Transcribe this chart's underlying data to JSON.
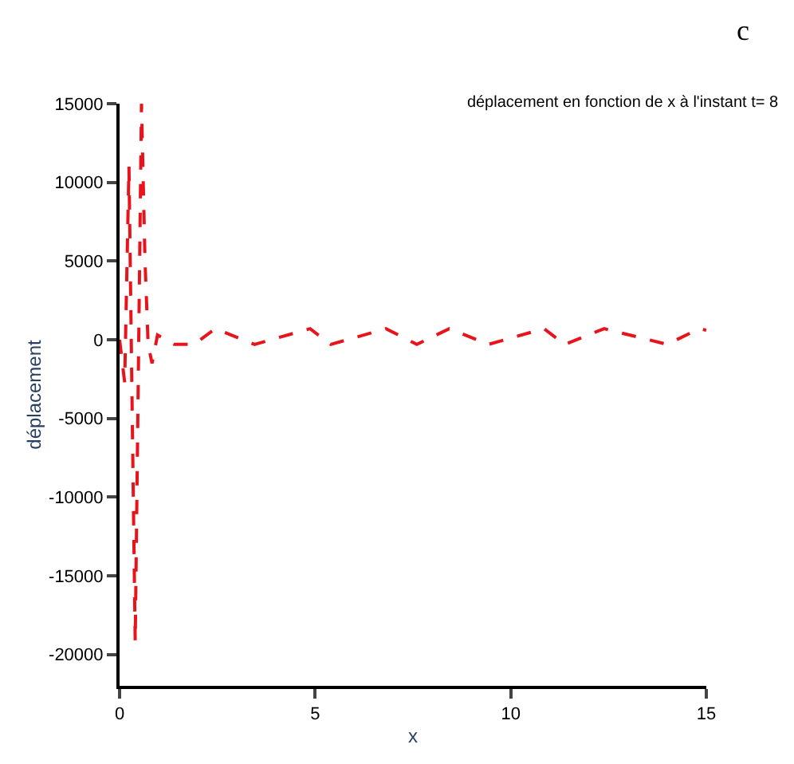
{
  "chart_data": {
    "type": "line",
    "title": "déplacement en fonction de x à l'instant t= 8",
    "xlabel": "x",
    "ylabel": "déplacement",
    "annotations": [
      "c"
    ],
    "series": [
      {
        "color": "#e8141c",
        "x": [
          0,
          0.13,
          0.24,
          0.4,
          0.56,
          0.65,
          0.73,
          0.83,
          0.97,
          1.4,
          1.9,
          2.45,
          3.45,
          4.87,
          5.4,
          6.81,
          7.6,
          8.43,
          9.43,
          10.85,
          11.38,
          12.39,
          14.0,
          14.82,
          15
        ],
        "values": [
          0,
          -2700,
          11000,
          -19200,
          15000,
          5000,
          -300,
          -1500,
          300,
          -300,
          -300,
          700,
          -300,
          700,
          -300,
          700,
          -300,
          700,
          -300,
          700,
          -300,
          700,
          -300,
          700,
          600
        ]
      }
    ],
    "xlim": [
      0,
      15
    ],
    "xticks": [
      0,
      5,
      10,
      15
    ],
    "ylim": [
      -22000,
      15000
    ],
    "yticks": [
      -20000,
      -15000,
      -10000,
      -5000,
      0,
      5000,
      10000,
      15000
    ],
    "marker": "none",
    "line_style": "dashed"
  }
}
